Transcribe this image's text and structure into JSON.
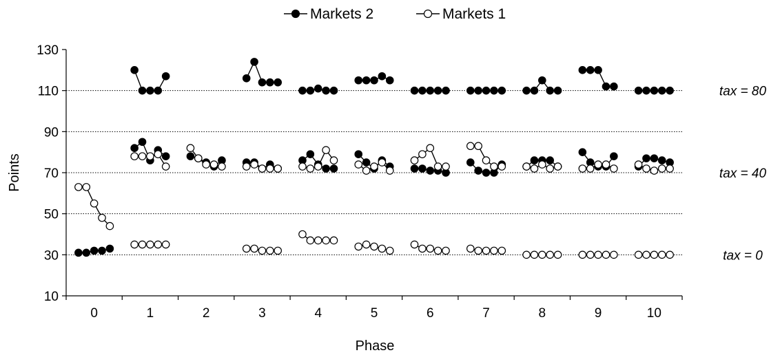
{
  "chart_data": {
    "type": "line",
    "title": "",
    "xlabel": "Phase",
    "ylabel": "Points",
    "ylim": [
      10,
      130
    ],
    "yticks": [
      10,
      30,
      50,
      70,
      90,
      110,
      130
    ],
    "gridlines": [
      30,
      50,
      70,
      90,
      110
    ],
    "grid_style": "dotted horizontal",
    "categories": [
      "0",
      "1",
      "2",
      "3",
      "4",
      "5",
      "6",
      "7",
      "8",
      "9",
      "10"
    ],
    "periods_per_phase": 5,
    "legend": {
      "position": "top-center"
    },
    "annotations": [
      {
        "text": "tax = 80",
        "y": 110
      },
      {
        "text": "tax = 40",
        "y": 70
      },
      {
        "text": "tax = 0",
        "y": 30
      }
    ],
    "series": [
      {
        "name": "Markets 2",
        "marker": "filled-circle",
        "color": "#000000",
        "segments": [
          {
            "phase": 0,
            "values": [
              31,
              31,
              32,
              32,
              33
            ]
          },
          {
            "phase": 1,
            "values": [
              120,
              110,
              110,
              110,
              117
            ]
          },
          {
            "phase": 1,
            "values": [
              82,
              85,
              76,
              81,
              78
            ]
          },
          {
            "phase": 2,
            "values": [
              78,
              77,
              75,
              73,
              76
            ]
          },
          {
            "phase": 3,
            "values": [
              116,
              124,
              114,
              114,
              114
            ]
          },
          {
            "phase": 3,
            "values": [
              75,
              75,
              72,
              74,
              72
            ]
          },
          {
            "phase": 4,
            "values": [
              110,
              110,
              111,
              110,
              110
            ]
          },
          {
            "phase": 4,
            "values": [
              76,
              79,
              74,
              72,
              72
            ]
          },
          {
            "phase": 5,
            "values": [
              115,
              115,
              115,
              117,
              115
            ]
          },
          {
            "phase": 5,
            "values": [
              79,
              75,
              72,
              76,
              73
            ]
          },
          {
            "phase": 6,
            "values": [
              110,
              110,
              110,
              110,
              110
            ]
          },
          {
            "phase": 6,
            "values": [
              72,
              72,
              71,
              71,
              70
            ]
          },
          {
            "phase": 7,
            "values": [
              110,
              110,
              110,
              110,
              110
            ]
          },
          {
            "phase": 7,
            "values": [
              75,
              71,
              70,
              70,
              74
            ]
          },
          {
            "phase": 8,
            "values": [
              110,
              110,
              115,
              110,
              110
            ]
          },
          {
            "phase": 8,
            "values": [
              73,
              76,
              76,
              76,
              73
            ]
          },
          {
            "phase": 9,
            "values": [
              120,
              120,
              120,
              112,
              112
            ]
          },
          {
            "phase": 9,
            "values": [
              80,
              75,
              73,
              73,
              78
            ]
          },
          {
            "phase": 10,
            "values": [
              110,
              110,
              110,
              110,
              110
            ]
          },
          {
            "phase": 10,
            "values": [
              73,
              77,
              77,
              76,
              75
            ]
          }
        ]
      },
      {
        "name": "Markets 1",
        "marker": "open-circle",
        "color": "#000000",
        "segments": [
          {
            "phase": 0,
            "values": [
              63,
              63,
              55,
              48,
              44
            ]
          },
          {
            "phase": 1,
            "values": [
              35,
              35,
              35,
              35,
              35
            ]
          },
          {
            "phase": 1,
            "values": [
              78,
              78,
              78,
              79,
              73
            ]
          },
          {
            "phase": 2,
            "values": [
              82,
              77,
              74,
              74,
              73
            ]
          },
          {
            "phase": 3,
            "values": [
              33,
              33,
              32,
              32,
              32
            ]
          },
          {
            "phase": 3,
            "values": [
              73,
              74,
              72,
              72,
              72
            ]
          },
          {
            "phase": 4,
            "values": [
              40,
              37,
              37,
              37,
              37
            ]
          },
          {
            "phase": 4,
            "values": [
              73,
              72,
              73,
              81,
              76
            ]
          },
          {
            "phase": 5,
            "values": [
              34,
              35,
              34,
              33,
              32
            ]
          },
          {
            "phase": 5,
            "values": [
              74,
              71,
              73,
              75,
              71
            ]
          },
          {
            "phase": 6,
            "values": [
              35,
              33,
              33,
              32,
              32
            ]
          },
          {
            "phase": 6,
            "values": [
              76,
              79,
              82,
              73,
              73
            ]
          },
          {
            "phase": 7,
            "values": [
              33,
              32,
              32,
              32,
              32
            ]
          },
          {
            "phase": 7,
            "values": [
              83,
              83,
              76,
              73,
              73
            ]
          },
          {
            "phase": 8,
            "values": [
              30,
              30,
              30,
              30,
              30
            ]
          },
          {
            "phase": 8,
            "values": [
              73,
              72,
              74,
              72,
              73
            ]
          },
          {
            "phase": 9,
            "values": [
              30,
              30,
              30,
              30,
              30
            ]
          },
          {
            "phase": 9,
            "values": [
              72,
              72,
              74,
              74,
              72
            ]
          },
          {
            "phase": 10,
            "values": [
              30,
              30,
              30,
              30,
              30
            ]
          },
          {
            "phase": 10,
            "values": [
              74,
              72,
              71,
              72,
              72
            ]
          }
        ]
      }
    ]
  }
}
